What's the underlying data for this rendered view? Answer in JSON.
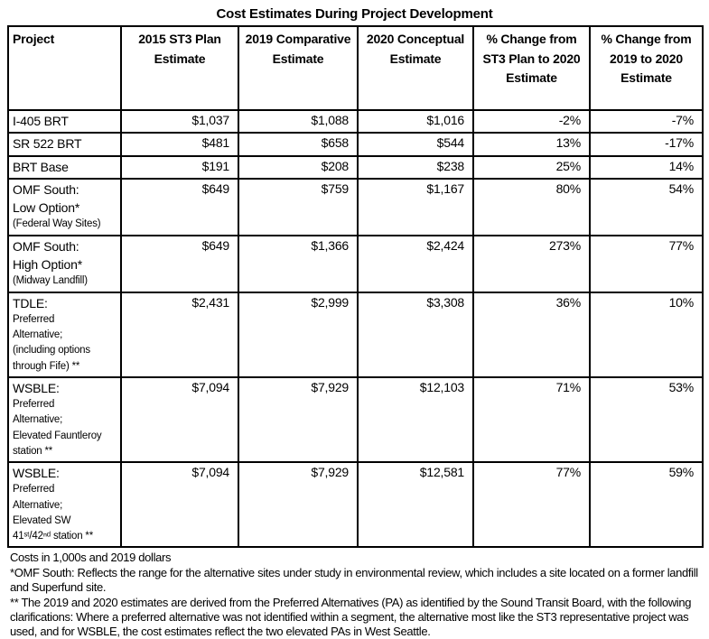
{
  "title": "Cost Estimates During Project Development",
  "table": {
    "columns": [
      "Project",
      "2015 ST3 Plan Estimate",
      "2019 Comparative Estimate",
      "2020 Conceptual Estimate",
      "% Change from ST3 Plan to 2020 Estimate",
      "% Change from 2019 to 2020 Estimate"
    ],
    "rows": [
      {
        "project_lines": [
          "I-405 BRT"
        ],
        "project_sublines": [],
        "est_2015": "$1,037",
        "est_2019": "$1,088",
        "est_2020": "$1,016",
        "pct_st3_to_2020": "-2%",
        "pct_2019_to_2020": "-7%"
      },
      {
        "project_lines": [
          "SR 522 BRT"
        ],
        "project_sublines": [],
        "est_2015": "$481",
        "est_2019": "$658",
        "est_2020": "$544",
        "pct_st3_to_2020": "13%",
        "pct_2019_to_2020": "-17%"
      },
      {
        "project_lines": [
          "BRT Base"
        ],
        "project_sublines": [],
        "est_2015": "$191",
        "est_2019": "$208",
        "est_2020": "$238",
        "pct_st3_to_2020": "25%",
        "pct_2019_to_2020": "14%"
      },
      {
        "project_lines": [
          "OMF South:",
          "Low Option*"
        ],
        "project_sublines": [
          "(Federal Way Sites)"
        ],
        "est_2015": "$649",
        "est_2019": "$759",
        "est_2020": "$1,167",
        "pct_st3_to_2020": "80%",
        "pct_2019_to_2020": "54%"
      },
      {
        "project_lines": [
          "OMF South:",
          "High Option*"
        ],
        "project_sublines": [
          "(Midway Landfill)"
        ],
        "est_2015": "$649",
        "est_2019": "$1,366",
        "est_2020": "$2,424",
        "pct_st3_to_2020": "273%",
        "pct_2019_to_2020": "77%"
      },
      {
        "project_lines": [
          "TDLE:"
        ],
        "project_sublines": [
          "Preferred",
          "Alternative;",
          "(including options",
          "through Fife) **"
        ],
        "est_2015": "$2,431",
        "est_2019": "$2,999",
        "est_2020": "$3,308",
        "pct_st3_to_2020": "36%",
        "pct_2019_to_2020": "10%"
      },
      {
        "project_lines": [
          "WSBLE:"
        ],
        "project_sublines": [
          "Preferred",
          "Alternative;",
          "Elevated Fauntleroy",
          "station **"
        ],
        "est_2015": "$7,094",
        "est_2019": "$7,929",
        "est_2020": "$12,103",
        "pct_st3_to_2020": "71%",
        "pct_2019_to_2020": "53%"
      },
      {
        "project_lines": [
          "WSBLE:"
        ],
        "project_sublines": [
          "Preferred",
          "Alternative;",
          "Elevated SW",
          "41ˢᵗ/42ⁿᵈ station **"
        ],
        "est_2015": "$7,094",
        "est_2019": "$7,929",
        "est_2020": "$12,581",
        "pct_st3_to_2020": "77%",
        "pct_2019_to_2020": "59%"
      }
    ]
  },
  "notes": [
    "Costs in 1,000s and 2019 dollars",
    "*OMF South: Reflects the range for the alternative sites under study in environmental review, which includes a site located on a former landfill and Superfund site.",
    "** The 2019 and 2020 estimates are derived from the Preferred Alternatives (PA) as identified by the Sound Transit Board, with the following clarifications: Where a preferred alternative was not identified within a segment, the alternative most like the ST3 representative project was used, and for WSBLE, the cost estimates reflect the two elevated PAs in West Seattle."
  ],
  "colors": {
    "text": "#000000",
    "border": "#000000",
    "background": "#ffffff"
  }
}
